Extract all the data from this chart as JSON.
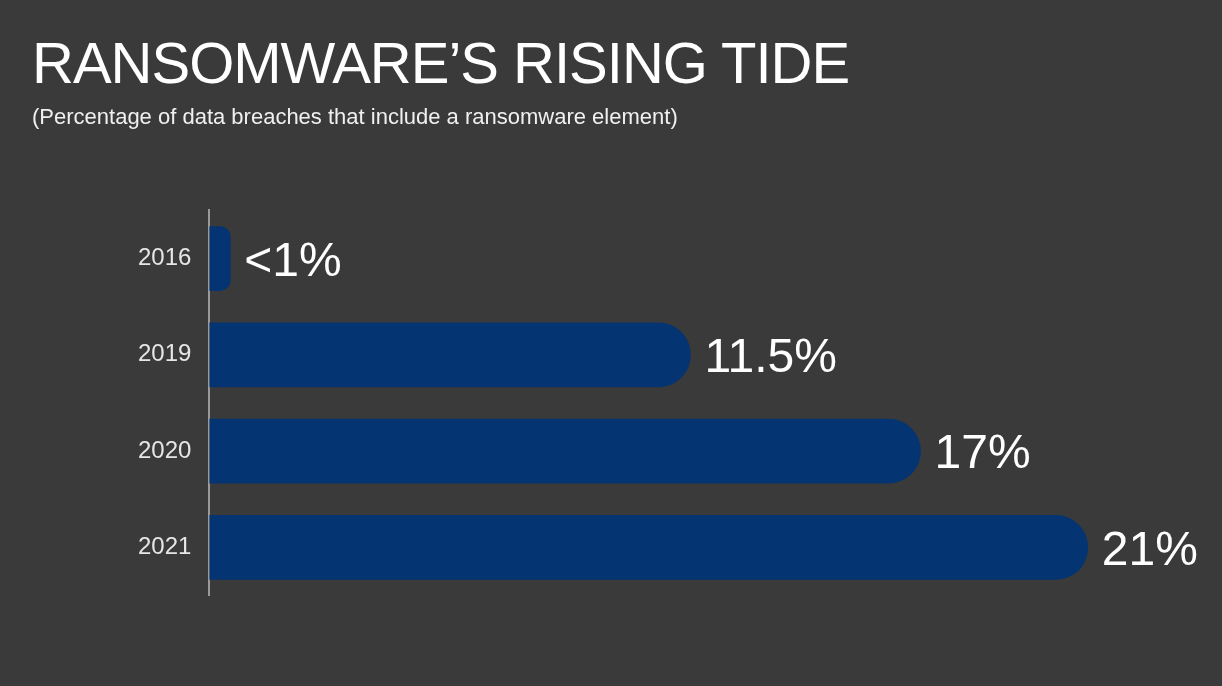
{
  "chart_data": {
    "type": "bar",
    "orientation": "horizontal",
    "title": "RANSOMWARE’S RISING TIDE",
    "subtitle": "(Percentage of data breaches that include a ransomware element)",
    "categories": [
      "2016",
      "2019",
      "2020",
      "2021"
    ],
    "values": [
      0.5,
      11.5,
      17,
      21
    ],
    "value_labels": [
      "<1%",
      "11.5%",
      "17%",
      "21%"
    ],
    "color": "#043471"
  }
}
